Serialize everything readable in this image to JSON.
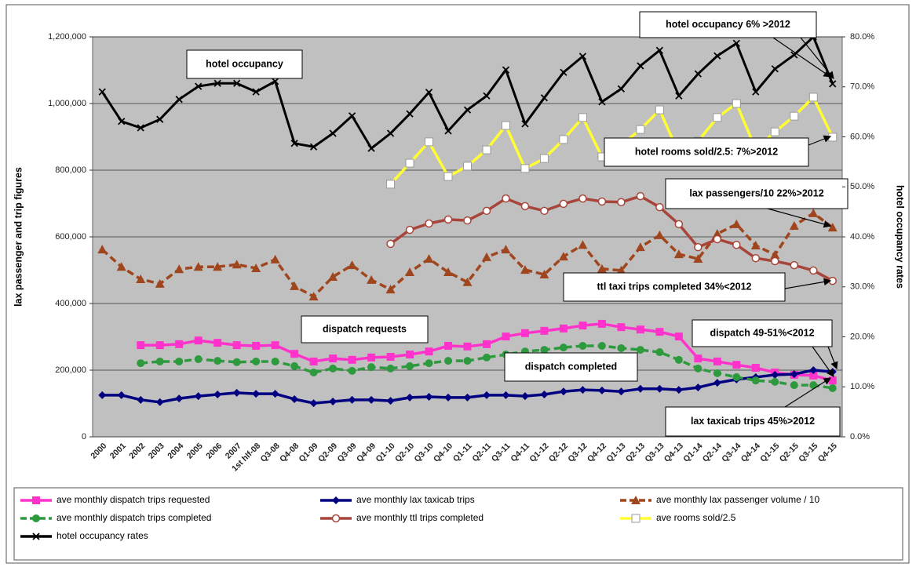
{
  "chart_data": {
    "type": "line",
    "y_label": "lax passenger and trip figures",
    "y2_label": "hotel occupancy rates",
    "categories": [
      "2000",
      "2001",
      "2002",
      "2003",
      "2004",
      "2005",
      "2006",
      "2007",
      "1st hlf-08",
      "Q3-08",
      "Q4-08",
      "Q1-09",
      "Q2-09",
      "Q3-09",
      "Q4-09",
      "Q1-10",
      "Q2-10",
      "Q3-10",
      "Q4-10",
      "Q1-11",
      "Q2-11",
      "Q3-11",
      "Q4-11",
      "Q1-12",
      "Q2-12",
      "Q3-12",
      "Q4-12",
      "Q1-13",
      "Q2-13",
      "Q3-13",
      "Q4-13",
      "Q1-14",
      "Q2-14",
      "Q3-14",
      "Q4-14",
      "Q1-15",
      "Q2-15",
      "Q3-15",
      "Q4-15"
    ],
    "ylim": [
      0,
      1200000
    ],
    "yticks": [
      0,
      {
        "value": 200000,
        "label": "200,000"
      },
      {
        "value": 400000,
        "label": "400,000"
      },
      {
        "value": 600000,
        "label": "600,000"
      },
      {
        "value": 800000,
        "label": "800,000"
      },
      {
        "value": 1000000,
        "label": "1,000,000"
      },
      {
        "value": 1200000,
        "label": "1,200,000"
      }
    ],
    "y2lim": [
      0,
      80
    ],
    "y2ticks": [
      {
        "value": 0,
        "label": "0.0%"
      },
      {
        "value": 10,
        "label": "10.0%"
      },
      {
        "value": 20,
        "label": "20.0%"
      },
      {
        "value": 30,
        "label": "30.0%"
      },
      {
        "value": 40,
        "label": "40.0%"
      },
      {
        "value": 50,
        "label": "50.0%"
      },
      {
        "value": 60,
        "label": "60.0%"
      },
      {
        "value": 70,
        "label": "70.0%"
      },
      {
        "value": 80,
        "label": "80.0%"
      }
    ],
    "grid": true,
    "legend": "bottom",
    "series": [
      {
        "name": "ave monthly dispatch trips requested",
        "color": "#ff33cc",
        "marker": "square",
        "dashed": false,
        "values": [
          null,
          null,
          275000,
          275000,
          278000,
          289000,
          282000,
          275000,
          273000,
          275000,
          249000,
          226000,
          235000,
          231000,
          238000,
          240000,
          247000,
          256000,
          273000,
          271000,
          278000,
          301000,
          311000,
          318000,
          325000,
          334000,
          339000,
          329000,
          322000,
          315000,
          301000,
          235000,
          226000,
          216000,
          207000,
          193000,
          186000,
          184000,
          169000
        ]
      },
      {
        "name": "ave monthly lax taxicab trips",
        "color": "#000080",
        "marker": "diamond",
        "dashed": false,
        "values": [
          125000,
          125000,
          111000,
          104000,
          115000,
          122000,
          127000,
          132000,
          129000,
          129000,
          113000,
          101000,
          106000,
          111000,
          111000,
          108000,
          118000,
          120000,
          118000,
          118000,
          125000,
          125000,
          122000,
          127000,
          136000,
          141000,
          139000,
          136000,
          144000,
          144000,
          141000,
          148000,
          162000,
          172000,
          179000,
          186000,
          188000,
          200000,
          195000
        ]
      },
      {
        "name": "ave monthly lax passenger volume / 10",
        "color": "#a0461e",
        "marker": "triangle",
        "dashed": true,
        "values": [
          562000,
          510000,
          473000,
          459000,
          503000,
          510000,
          510000,
          517000,
          506000,
          532000,
          452000,
          421000,
          480000,
          515000,
          471000,
          442000,
          494000,
          534000,
          494000,
          464000,
          539000,
          562000,
          501000,
          487000,
          541000,
          576000,
          504000,
          499000,
          569000,
          605000,
          548000,
          534000,
          609000,
          638000,
          574000,
          546000,
          633000,
          671000,
          628000
        ]
      },
      {
        "name": "ave monthly dispatch trips completed",
        "color": "#2e9a3e",
        "marker": "circle",
        "dashed": true,
        "values": [
          null,
          null,
          221000,
          226000,
          226000,
          233000,
          228000,
          224000,
          226000,
          226000,
          212000,
          193000,
          205000,
          198000,
          209000,
          205000,
          212000,
          221000,
          228000,
          228000,
          238000,
          247000,
          256000,
          261000,
          268000,
          273000,
          273000,
          266000,
          261000,
          254000,
          231000,
          205000,
          191000,
          179000,
          169000,
          165000,
          155000,
          155000,
          146000
        ]
      },
      {
        "name": "ave monthly ttl trips completed",
        "color": "#a8453a",
        "marker": "open-circle",
        "dashed": false,
        "values": [
          null,
          null,
          null,
          null,
          null,
          null,
          null,
          null,
          null,
          null,
          null,
          null,
          null,
          null,
          null,
          579000,
          621000,
          640000,
          652000,
          649000,
          678000,
          715000,
          692000,
          678000,
          699000,
          715000,
          706000,
          704000,
          722000,
          689000,
          638000,
          569000,
          593000,
          576000,
          536000,
          527000,
          515000,
          499000,
          468000
        ]
      },
      {
        "name": "ave rooms sold/2.5",
        "color": "#ffff33",
        "marker": "open-square",
        "dashed": false,
        "values": [
          null,
          null,
          null,
          null,
          null,
          null,
          null,
          null,
          null,
          null,
          null,
          null,
          null,
          null,
          null,
          758000,
          821000,
          885000,
          781000,
          812000,
          861000,
          934000,
          805000,
          835000,
          892000,
          958000,
          840000,
          875000,
          922000,
          981000,
          850000,
          887000,
          958000,
          1000000,
          863000,
          915000,
          962000,
          1019000,
          899000
        ]
      },
      {
        "name": "hotel occupancy rates",
        "color": "#000000",
        "marker": "x",
        "dashed": false,
        "axis": "y2",
        "values": [
          69.0,
          63.1,
          61.8,
          63.5,
          67.5,
          70.1,
          70.7,
          70.7,
          69.0,
          71.1,
          58.7,
          58.0,
          60.7,
          64.2,
          57.7,
          60.7,
          64.6,
          68.9,
          61.2,
          65.4,
          68.2,
          73.4,
          62.6,
          67.8,
          72.9,
          76.1,
          67.0,
          69.6,
          74.2,
          77.3,
          68.2,
          72.6,
          76.2,
          78.7,
          69.0,
          73.6,
          76.4,
          80.0,
          70.6
        ]
      }
    ],
    "annotations": [
      "hotel occupancy",
      "hotel occupancy 6% >2012",
      "hotel rooms sold/2.5: 7%>2012",
      "lax passengers/10  22%>2012",
      "ttl taxi trips completed  34%<2012",
      "dispatch requests",
      "dispatch completed",
      "dispatch 49-51%<2012",
      "lax taxicab trips 45%>2012"
    ]
  }
}
